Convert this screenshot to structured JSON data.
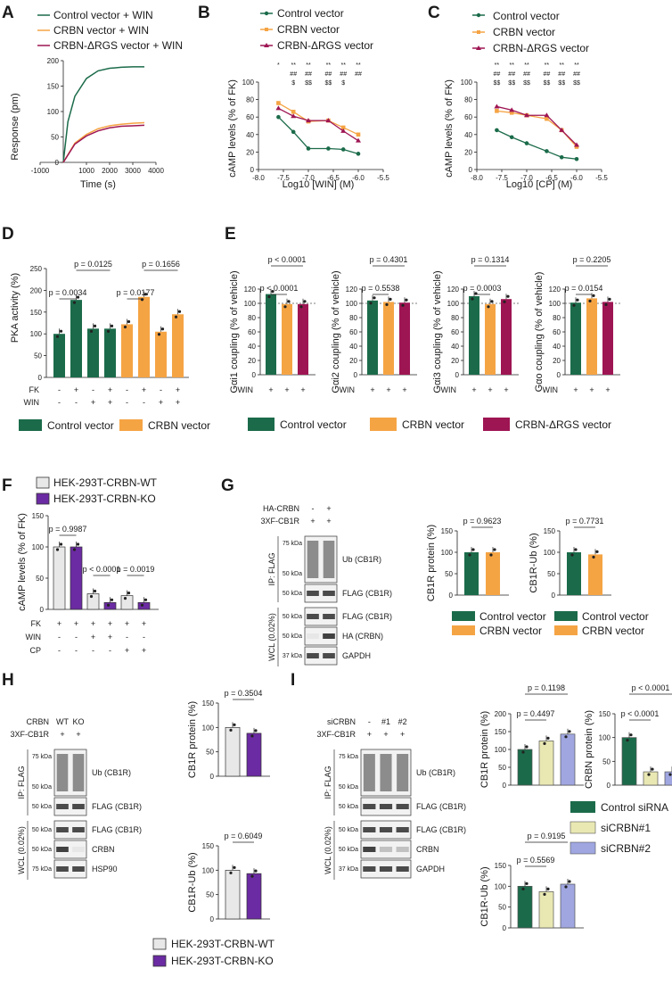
{
  "panels": [
    "A",
    "B",
    "C",
    "D",
    "E",
    "F",
    "G",
    "H",
    "I"
  ],
  "colors": {
    "green": "#1b6b4a",
    "orange": "#f5a444",
    "magenta": "#9e1553",
    "light": "#e8e8e8",
    "purple": "#6b2ba2",
    "yellow": "#e9e8b3",
    "blue": "#9fa6e0"
  },
  "A": {
    "legend": [
      "Control vector + WIN",
      "CRBN vector + WIN",
      "CRBN-ΔRGS vector + WIN"
    ],
    "ylabel": "Response (pm)",
    "xlabel": "Time (s)",
    "xticks": [
      "-1000",
      "1000",
      "2000",
      "3000",
      "4000"
    ],
    "yticks": [
      "0",
      "50",
      "100",
      "150",
      "200"
    ]
  },
  "B": {
    "legend": [
      "Control vector",
      "CRBN vector",
      "CRBN-ΔRGS vector"
    ],
    "ylabel": "cAMP levels (% of FK)",
    "xlabel": "Log10 [WIN] (M)",
    "xticks": [
      "-8.0",
      "-7.5",
      "-7.0",
      "-6.5",
      "-6.0",
      "-5.5"
    ],
    "yticks": [
      "0",
      "20",
      "40",
      "60",
      "80",
      "100"
    ],
    "sig1": [
      "*",
      "**",
      "**",
      "**",
      "**",
      "**"
    ],
    "sig2": [
      "##",
      "##",
      "##",
      "##",
      "##"
    ],
    "sig3": [
      "$",
      "$$",
      "$$",
      "$"
    ]
  },
  "C": {
    "legend": [
      "Control vector",
      "CRBN vector",
      "CRBN-ΔRGS vector"
    ],
    "ylabel": "cAMP levels (% of FK)",
    "xlabel": "Log10 [CP] (M)",
    "xticks": [
      "-8.0",
      "-7.5",
      "-7.0",
      "-6.5",
      "-6.0",
      "-5.5"
    ],
    "yticks": [
      "0",
      "20",
      "40",
      "60",
      "80",
      "100"
    ],
    "sig1": [
      "**",
      "**",
      "**",
      "**",
      "**",
      "**"
    ],
    "sig2": [
      "##",
      "##",
      "##",
      "##",
      "##",
      "##"
    ],
    "sig3": [
      "$$",
      "$$",
      "$$",
      "$$",
      "$$",
      "$$"
    ]
  },
  "D": {
    "ylabel": "PKA activity (%)",
    "yticks": [
      "0",
      "50",
      "100",
      "150",
      "200",
      "250"
    ],
    "pvals": [
      "p = 0.0034",
      "p = 0.0125",
      "p = 0.0177",
      "p = 0.1656"
    ],
    "fk": [
      "-",
      "+",
      "-",
      "+",
      "-",
      "+",
      "-",
      "+"
    ],
    "win": [
      "-",
      "-",
      "+",
      "+",
      "-",
      "-",
      "+",
      "+"
    ],
    "rowFK": "FK",
    "rowWIN": "WIN",
    "legend": [
      "Control vector",
      "CRBN vector"
    ]
  },
  "E": {
    "ylabels": [
      "Gαi1 coupling (% of vehicle)",
      "Gαi2 coupling (% of vehicle)",
      "Gαi3 coupling (% of vehicle)",
      "Gαo coupling (% of vehicle)"
    ],
    "pTop": [
      "p < 0.0001",
      "p = 0.4301",
      "p = 0.1314",
      "p = 0.2205"
    ],
    "pBot": [
      "p < 0.0001",
      "p = 0.5538",
      "p = 0.0003",
      "p = 0.0154"
    ],
    "yticks": [
      "0",
      "20",
      "40",
      "60",
      "80",
      "100",
      "120"
    ],
    "win": "WIN",
    "legend": [
      "Control vector",
      "CRBN vector",
      "CRBN-ΔRGS vector"
    ]
  },
  "F": {
    "legend": [
      "HEK-293T-CRBN-WT",
      "HEK-293T-CRBN-KO"
    ],
    "ylabel": "cAMP levels (% of FK)",
    "yticks": [
      "0",
      "50",
      "100",
      "150"
    ],
    "pvals": [
      "p = 0.9987",
      "p < 0.0001",
      "p = 0.0019"
    ],
    "rows": {
      "FK": [
        "+",
        "+",
        "+",
        "+",
        "+",
        "+"
      ],
      "WIN": [
        "-",
        "-",
        "+",
        "+",
        "-",
        "-"
      ],
      "CP": [
        "-",
        "-",
        "-",
        "-",
        "+",
        "+"
      ]
    }
  },
  "G": {
    "haCrbn": "HA-CRBN",
    "flagCb1r": "3XF-CB1R",
    "ha": [
      "-",
      "+"
    ],
    "cb": [
      "+",
      "+"
    ],
    "ipLabel": "IP: FLAG",
    "wclLabel": "WCL (0.02%)",
    "mw": [
      "75 kDa",
      "50 kDa",
      "50 kDa",
      "50 kDa",
      "50 kDa",
      "37 kDa"
    ],
    "bands": [
      "Ub (CB1R)",
      "FLAG (CB1R)",
      "FLAG (CB1R)",
      "HA (CRBN)",
      "GAPDH"
    ],
    "p1": "p = 0.9623",
    "p2": "p = 0.7731",
    "ylabel1": "CB1R protein (%)",
    "ylabel2": "CB1R-Ub (%)",
    "yticks": [
      "0",
      "50",
      "100",
      "150"
    ],
    "legend": [
      "Control vector",
      "CRBN vector"
    ]
  },
  "H": {
    "crbn": "CRBN",
    "wt": "WT",
    "ko": "KO",
    "flagCb1r": "3XF-CB1R",
    "cb": [
      "+",
      "+"
    ],
    "ipLabel": "IP: FLAG",
    "wclLabel": "WCL (0.02%)",
    "mw": [
      "75 kDa",
      "50 kDa",
      "50 kDa",
      "50 kDa",
      "50 kDa",
      "75 kDa"
    ],
    "bands": [
      "Ub (CB1R)",
      "FLAG (CB1R)",
      "FLAG (CB1R)",
      "CRBN",
      "HSP90"
    ],
    "p1": "p = 0.3504",
    "p2": "p = 0.6049",
    "ylabel1": "CB1R protein (%)",
    "ylabel2": "CB1R-Ub (%)",
    "yticks": [
      "0",
      "50",
      "100",
      "150"
    ],
    "legend": [
      "HEK-293T-CRBN-WT",
      "HEK-293T-CRBN-KO"
    ]
  },
  "I": {
    "sicrbn": "siCRBN",
    "lanes": [
      "-",
      "#1",
      "#2"
    ],
    "flagCb1r": "3XF-CB1R",
    "cb": [
      "+",
      "+",
      "+"
    ],
    "ipLabel": "IP: FLAG",
    "wclLabel": "WCL (0.02%)",
    "mw": [
      "75 kDa",
      "50 kDa",
      "50 kDa",
      "50 kDa",
      "50 kDa",
      "37 kDa"
    ],
    "bands": [
      "Ub (CB1R)",
      "FLAG (CB1R)",
      "FLAG (CB1R)",
      "CRBN",
      "GAPDH"
    ],
    "p1a": "p = 0.1198",
    "p1b": "p = 0.4497",
    "p2a": "p < 0.0001",
    "p2b": "p < 0.0001",
    "p3a": "p = 0.9195",
    "p3b": "p = 0.5569",
    "ylabel1": "CB1R protein (%)",
    "ylabel2": "CRBN protein (%)",
    "ylabel3": "CB1R-Ub (%)",
    "yticks": [
      "0",
      "50",
      "100",
      "150",
      "200"
    ],
    "yticks2": [
      "0",
      "50",
      "100",
      "150"
    ],
    "legend": [
      "Control siRNA",
      "siCRBN#1",
      "siCRBN#2"
    ]
  },
  "chart_data": [
    {
      "panel": "A",
      "type": "line",
      "title": "",
      "xlabel": "Time (s)",
      "ylabel": "Response (pm)",
      "xlim": [
        -1000,
        4000
      ],
      "ylim": [
        0,
        200
      ],
      "series": [
        {
          "name": "Control vector + WIN",
          "x": [
            0,
            200,
            500,
            1000,
            1500,
            2000,
            2500,
            3000,
            3500
          ],
          "y": [
            0,
            80,
            130,
            165,
            180,
            185,
            187,
            188,
            188
          ]
        },
        {
          "name": "CRBN vector + WIN",
          "x": [
            0,
            500,
            1000,
            1500,
            2000,
            2500,
            3000,
            3500
          ],
          "y": [
            0,
            38,
            55,
            66,
            72,
            75,
            77,
            78
          ]
        },
        {
          "name": "CRBN-ΔRGS vector + WIN",
          "x": [
            0,
            500,
            1000,
            1500,
            2000,
            2500,
            3000,
            3500
          ],
          "y": [
            0,
            36,
            52,
            62,
            68,
            71,
            72,
            73
          ]
        }
      ]
    },
    {
      "panel": "B",
      "type": "line",
      "xlabel": "Log10 [WIN] (M)",
      "ylabel": "cAMP levels (% of FK)",
      "xlim": [
        -8,
        -5.5
      ],
      "ylim": [
        0,
        100
      ],
      "series": [
        {
          "name": "Control vector",
          "x": [
            -7.6,
            -7.3,
            -7.0,
            -6.6,
            -6.3,
            -6.0
          ],
          "y": [
            60,
            43,
            24,
            24,
            23,
            18
          ]
        },
        {
          "name": "CRBN vector",
          "x": [
            -7.6,
            -7.3,
            -7.0,
            -6.6,
            -6.3,
            -6.0
          ],
          "y": [
            76,
            66,
            55,
            56,
            48,
            40
          ]
        },
        {
          "name": "CRBN-ΔRGS vector",
          "x": [
            -7.6,
            -7.3,
            -7.0,
            -6.6,
            -6.3,
            -6.0
          ],
          "y": [
            70,
            61,
            56,
            56,
            44,
            33
          ]
        }
      ]
    },
    {
      "panel": "C",
      "type": "line",
      "xlabel": "Log10 [CP] (M)",
      "ylabel": "cAMP levels (% of FK)",
      "xlim": [
        -8,
        -5.5
      ],
      "ylim": [
        0,
        100
      ],
      "series": [
        {
          "name": "Control vector",
          "x": [
            -7.6,
            -7.3,
            -7.0,
            -6.6,
            -6.3,
            -6.0
          ],
          "y": [
            45,
            37,
            30,
            21,
            14,
            12
          ]
        },
        {
          "name": "CRBN vector",
          "x": [
            -7.6,
            -7.3,
            -7.0,
            -6.6,
            -6.3,
            -6.0
          ],
          "y": [
            67,
            65,
            62,
            58,
            45,
            26
          ]
        },
        {
          "name": "CRBN-ΔRGS vector",
          "x": [
            -7.6,
            -7.3,
            -7.0,
            -6.6,
            -6.3,
            -6.0
          ],
          "y": [
            72,
            68,
            62,
            62,
            45,
            28
          ]
        }
      ]
    },
    {
      "panel": "D",
      "type": "bar",
      "ylabel": "PKA activity (%)",
      "ylim": [
        0,
        250
      ],
      "values": [
        100,
        178,
        112,
        112,
        122,
        185,
        105,
        145
      ]
    },
    {
      "panel": "E",
      "type": "bar",
      "ylim": [
        0,
        120
      ],
      "groups": [
        [
          113,
          99,
          99
        ],
        [
          104,
          102,
          101
        ],
        [
          110,
          99,
          106
        ],
        [
          101,
          107,
          102
        ]
      ]
    },
    {
      "panel": "F",
      "type": "bar",
      "ylim": [
        0,
        150
      ],
      "values": [
        100,
        100,
        25,
        11,
        22,
        11
      ]
    },
    {
      "panel": "G1",
      "type": "bar",
      "ylim": [
        0,
        150
      ],
      "values": [
        100,
        100
      ]
    },
    {
      "panel": "G2",
      "type": "bar",
      "ylim": [
        0,
        150
      ],
      "values": [
        100,
        95
      ]
    },
    {
      "panel": "H1",
      "type": "bar",
      "ylim": [
        0,
        150
      ],
      "values": [
        100,
        88
      ]
    },
    {
      "panel": "H2",
      "type": "bar",
      "ylim": [
        0,
        150
      ],
      "values": [
        100,
        93
      ]
    },
    {
      "panel": "I1",
      "type": "bar",
      "ylim": [
        0,
        200
      ],
      "values": [
        100,
        124,
        143
      ]
    },
    {
      "panel": "I2",
      "type": "bar",
      "ylim": [
        0,
        150
      ],
      "values": [
        100,
        28,
        28
      ]
    },
    {
      "panel": "I3",
      "type": "bar",
      "ylim": [
        0,
        150
      ],
      "values": [
        100,
        87,
        105
      ]
    }
  ]
}
